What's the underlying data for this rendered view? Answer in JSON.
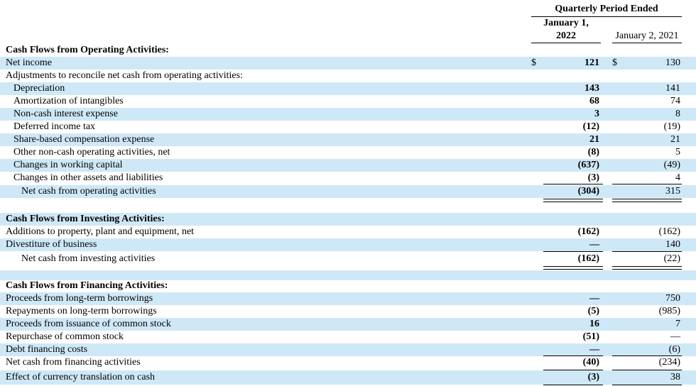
{
  "header": {
    "period": "Quarterly Period Ended",
    "col1_line1": "January 1,",
    "col1_line2": "2022",
    "col2": "January 2, 2021"
  },
  "rows": [
    {
      "label": "Cash Flows from Operating Activities:"
    },
    {
      "label": "Net income",
      "dollar1": "$",
      "v1": "121",
      "dollar2": "$",
      "v2": "130"
    },
    {
      "label": "Adjustments to reconcile net cash from operating activities:"
    },
    {
      "label": "Depreciation",
      "v1": "143",
      "v2": "141"
    },
    {
      "label": "Amortization of intangibles",
      "v1": "68",
      "v2": "74"
    },
    {
      "label": "Non-cash interest expense",
      "v1": "3",
      "v2": "8"
    },
    {
      "label": "Deferred income tax",
      "v1": "(12)",
      "v2": "(19)"
    },
    {
      "label": "Share-based compensation expense",
      "v1": "21",
      "v2": "21"
    },
    {
      "label": "Other non-cash operating activities, net",
      "v1": "(8)",
      "v2": "5"
    },
    {
      "label": "Changes in working capital",
      "v1": "(637)",
      "v2": "(49)"
    },
    {
      "label": "Changes in other assets and liabilities",
      "v1": "(3)",
      "v2": "4"
    },
    {
      "label": "Net cash from operating activities",
      "v1": "(304)",
      "v2": "315"
    },
    {
      "label": "Cash Flows from Investing Activities:"
    },
    {
      "label": "Additions to property, plant and equipment, net",
      "v1": "(162)",
      "v2": "(162)"
    },
    {
      "label": "Divestiture of business",
      "v1": "—",
      "v2": "140"
    },
    {
      "label": "Net cash from investing activities",
      "v1": "(162)",
      "v2": "(22)"
    },
    {
      "label": "Cash Flows from Financing Activities:"
    },
    {
      "label": "Proceeds from long-term borrowings",
      "v1": "—",
      "v2": "750"
    },
    {
      "label": "Repayments on long-term borrowings",
      "v1": "(5)",
      "v2": "(985)"
    },
    {
      "label": "Proceeds from issuance of common stock",
      "v1": "16",
      "v2": "7"
    },
    {
      "label": "Repurchase of common stock",
      "v1": "(51)",
      "v2": "—"
    },
    {
      "label": "Debt financing costs",
      "v1": "—",
      "v2": "(6)"
    },
    {
      "label": "Net cash from financing activities",
      "v1": "(40)",
      "v2": "(234)"
    },
    {
      "label": "Effect of currency translation on cash",
      "v1": "(3)",
      "v2": "38"
    }
  ]
}
